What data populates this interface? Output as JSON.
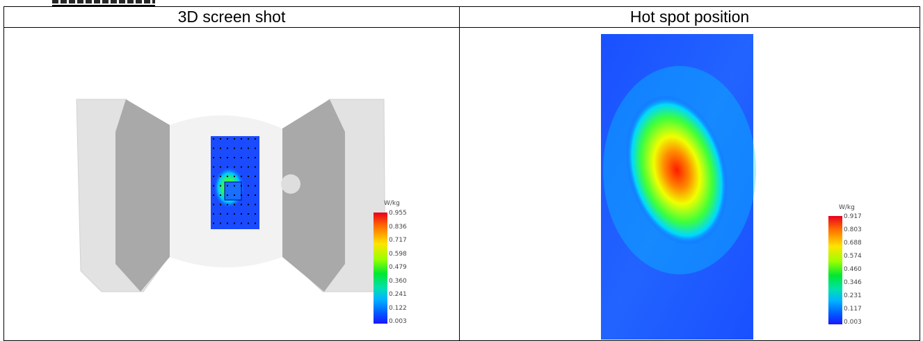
{
  "header_fragment": "",
  "table": {
    "col1_header": "3D screen shot",
    "col2_header": "Hot spot position"
  },
  "left_panel": {
    "unit": "W/kg",
    "scale_labels": [
      "0.955",
      "0.836",
      "0.717",
      "0.598",
      "0.479",
      "0.360",
      "0.241",
      "0.122",
      "0.003"
    ]
  },
  "right_panel": {
    "unit": "W/kg",
    "scale_labels": [
      "0.917",
      "0.803",
      "0.688",
      "0.574",
      "0.460",
      "0.346",
      "0.231",
      "0.117",
      "0.003"
    ]
  },
  "colors": {
    "phantom_light": "#e4e4e4",
    "phantom_dark": "#a9a9a9",
    "field_blue": "#1a4bff",
    "hotspot_red": "#ff1a00"
  }
}
